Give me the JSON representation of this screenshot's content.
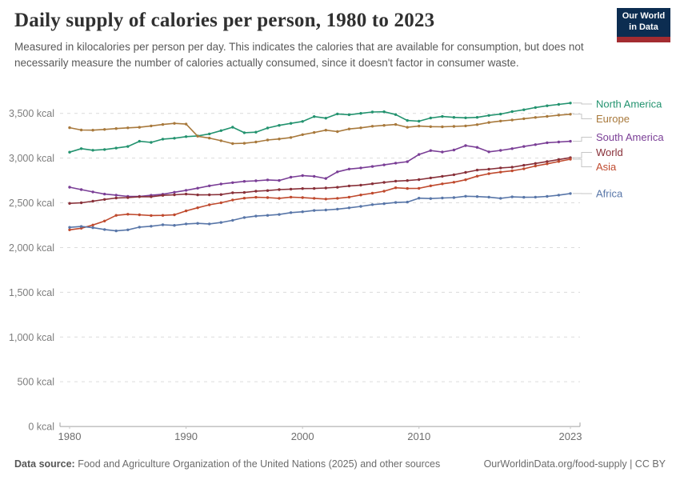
{
  "header": {
    "title": "Daily supply of calories per person, 1980 to 2023",
    "subtitle": "Measured in kilocalories per person per day. This indicates the calories that are available for consumption, but does not necessarily measure the number of calories actually consumed, since it doesn't factor in consumer waste."
  },
  "logo": {
    "line1": "Our World",
    "line2": "in Data",
    "bg_color": "#0c2d51",
    "bar_color": "#a32c31"
  },
  "footer": {
    "source_label": "Data source:",
    "source_text": " Food and Agriculture Organization of the United Nations (2025) and other sources",
    "link": "OurWorldinData.org/food-supply | CC BY"
  },
  "chart_data": {
    "type": "line",
    "title": "Daily supply of calories per person, 1980 to 2023",
    "unit": "kcal",
    "xlabel": "",
    "ylabel": "kcal per person per day",
    "ylim": [
      0,
      3700
    ],
    "grid": "horizontal-dashed",
    "legend_position": "right",
    "xticks": [
      1980,
      1990,
      2000,
      2010,
      2023
    ],
    "yticks": [
      {
        "value": 0,
        "label": "0 kcal"
      },
      {
        "value": 500,
        "label": "500 kcal"
      },
      {
        "value": 1000,
        "label": "1,000 kcal"
      },
      {
        "value": 1500,
        "label": "1,500 kcal"
      },
      {
        "value": 2000,
        "label": "2,000 kcal"
      },
      {
        "value": 2500,
        "label": "2,500 kcal"
      },
      {
        "value": 3000,
        "label": "3,000 kcal"
      },
      {
        "value": 3500,
        "label": "3,500 kcal"
      }
    ],
    "years": [
      1980,
      1981,
      1982,
      1983,
      1984,
      1985,
      1986,
      1987,
      1988,
      1989,
      1990,
      1991,
      1992,
      1993,
      1994,
      1995,
      1996,
      1997,
      1998,
      1999,
      2000,
      2001,
      2002,
      2003,
      2004,
      2005,
      2006,
      2007,
      2008,
      2009,
      2010,
      2011,
      2012,
      2013,
      2014,
      2015,
      2016,
      2017,
      2018,
      2019,
      2020,
      2021,
      2022,
      2023
    ],
    "series": [
      {
        "name": "North America",
        "color": "#23936f",
        "values": [
          3066,
          3106,
          3088,
          3096,
          3112,
          3130,
          3188,
          3175,
          3212,
          3222,
          3240,
          3248,
          3270,
          3307,
          3345,
          3284,
          3290,
          3336,
          3366,
          3388,
          3410,
          3464,
          3446,
          3494,
          3485,
          3500,
          3515,
          3518,
          3487,
          3420,
          3412,
          3448,
          3465,
          3455,
          3450,
          3455,
          3477,
          3492,
          3520,
          3540,
          3565,
          3585,
          3600,
          3615
        ]
      },
      {
        "name": "Europe",
        "color": "#a8793c",
        "values": [
          3340,
          3314,
          3312,
          3320,
          3330,
          3338,
          3344,
          3360,
          3376,
          3388,
          3380,
          3244,
          3224,
          3194,
          3162,
          3166,
          3180,
          3202,
          3214,
          3230,
          3262,
          3286,
          3312,
          3296,
          3326,
          3338,
          3356,
          3366,
          3376,
          3344,
          3358,
          3352,
          3350,
          3354,
          3360,
          3374,
          3398,
          3414,
          3426,
          3440,
          3454,
          3466,
          3480,
          3490
        ]
      },
      {
        "name": "South America",
        "color": "#7a3e96",
        "values": [
          2675,
          2648,
          2622,
          2598,
          2586,
          2572,
          2572,
          2584,
          2596,
          2618,
          2640,
          2664,
          2690,
          2710,
          2726,
          2740,
          2746,
          2756,
          2750,
          2786,
          2804,
          2796,
          2772,
          2846,
          2878,
          2890,
          2906,
          2924,
          2944,
          2960,
          3040,
          3084,
          3068,
          3090,
          3140,
          3120,
          3070,
          3086,
          3106,
          3130,
          3150,
          3172,
          3180,
          3188
        ]
      },
      {
        "name": "World",
        "color": "#883039",
        "values": [
          2494,
          2500,
          2518,
          2538,
          2554,
          2558,
          2568,
          2568,
          2583,
          2590,
          2598,
          2589,
          2590,
          2592,
          2612,
          2616,
          2630,
          2637,
          2648,
          2653,
          2659,
          2660,
          2666,
          2674,
          2689,
          2698,
          2713,
          2728,
          2743,
          2749,
          2760,
          2778,
          2796,
          2814,
          2840,
          2866,
          2876,
          2890,
          2898,
          2920,
          2940,
          2962,
          2984,
          3005
        ]
      },
      {
        "name": "Asia",
        "color": "#bf4a2e",
        "values": [
          2198,
          2216,
          2252,
          2296,
          2360,
          2372,
          2366,
          2358,
          2360,
          2366,
          2410,
          2445,
          2478,
          2500,
          2532,
          2552,
          2562,
          2558,
          2550,
          2564,
          2558,
          2550,
          2542,
          2550,
          2564,
          2588,
          2608,
          2630,
          2668,
          2660,
          2662,
          2690,
          2712,
          2730,
          2758,
          2798,
          2826,
          2844,
          2858,
          2880,
          2912,
          2936,
          2962,
          2988
        ]
      },
      {
        "name": "Africa",
        "color": "#5876a8",
        "values": [
          2226,
          2236,
          2222,
          2202,
          2186,
          2198,
          2228,
          2238,
          2254,
          2248,
          2264,
          2270,
          2264,
          2280,
          2304,
          2336,
          2352,
          2360,
          2370,
          2390,
          2400,
          2414,
          2420,
          2430,
          2444,
          2460,
          2480,
          2490,
          2504,
          2508,
          2552,
          2548,
          2554,
          2558,
          2574,
          2570,
          2564,
          2550,
          2566,
          2562,
          2564,
          2572,
          2586,
          2604
        ]
      }
    ]
  }
}
